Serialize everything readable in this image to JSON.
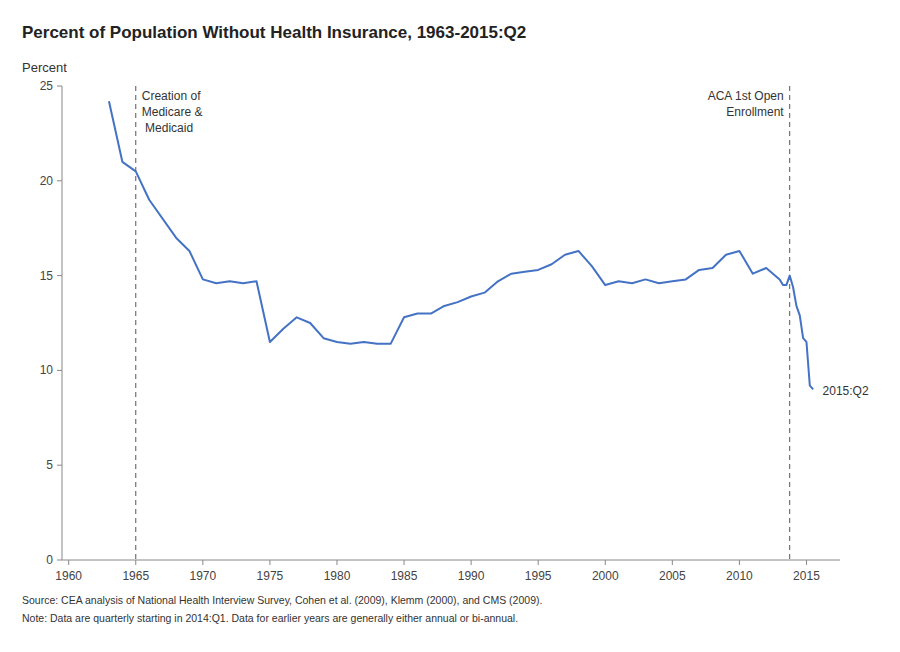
{
  "chart_data": {
    "type": "line",
    "title": "Percent of Population Without Health Insurance, 1963-2015:Q2",
    "ylabel": "Percent",
    "color": "#4472C4",
    "grid": false,
    "xlim": [
      1959.5,
      2017.5
    ],
    "ylim": [
      0,
      25
    ],
    "xticks": [
      1960,
      1965,
      1970,
      1975,
      1980,
      1985,
      1990,
      1995,
      2000,
      2005,
      2010,
      2015
    ],
    "yticks": [
      0,
      5,
      10,
      15,
      20,
      25
    ],
    "x": [
      1963,
      1964,
      1965,
      1966,
      1968,
      1969,
      1970,
      1971,
      1972,
      1973,
      1974,
      1975,
      1976,
      1977,
      1978,
      1979,
      1980,
      1981,
      1982,
      1983,
      1984,
      1985,
      1986,
      1987,
      1988,
      1989,
      1990,
      1991,
      1992,
      1993,
      1994,
      1995,
      1996,
      1997,
      1998,
      1999,
      2000,
      2001,
      2002,
      2003,
      2004,
      2005,
      2006,
      2007,
      2008,
      2009,
      2010,
      2011,
      2012,
      2013,
      2013.25,
      2013.5,
      2013.75,
      2014.0,
      2014.25,
      2014.5,
      2014.75,
      2015.0,
      2015.25,
      2015.5
    ],
    "values": [
      24.2,
      21.0,
      20.5,
      19.0,
      17.0,
      16.3,
      14.8,
      14.6,
      14.7,
      14.6,
      14.7,
      11.5,
      12.2,
      12.8,
      12.5,
      11.7,
      11.5,
      11.4,
      11.5,
      11.4,
      11.4,
      12.8,
      13.0,
      13.0,
      13.4,
      13.6,
      13.9,
      14.1,
      14.7,
      15.1,
      15.2,
      15.3,
      15.6,
      16.1,
      16.3,
      15.5,
      14.5,
      14.7,
      14.6,
      14.8,
      14.6,
      14.7,
      14.8,
      15.3,
      15.4,
      16.1,
      16.3,
      15.1,
      15.4,
      14.8,
      14.5,
      14.5,
      15.0,
      14.4,
      13.4,
      12.9,
      11.7,
      11.5,
      9.2,
      9.0
    ],
    "annotations": [
      {
        "type": "vline",
        "x": 1965,
        "text": "Creation of\nMedicare &\n Medicaid"
      },
      {
        "type": "vline",
        "x": 2013.75,
        "text": "ACA 1st Open\nEnrollment"
      },
      {
        "type": "text",
        "x": 2016.2,
        "y": 8.9,
        "text": "2015:Q2"
      }
    ],
    "source": "Source: CEA analysis of National Health Interview Survey, Cohen et al. (2009), Klemm (2000), and CMS (2009).",
    "note": "Note: Data are quarterly starting in 2014:Q1. Data for earlier years are generally either annual or bi-annual."
  }
}
